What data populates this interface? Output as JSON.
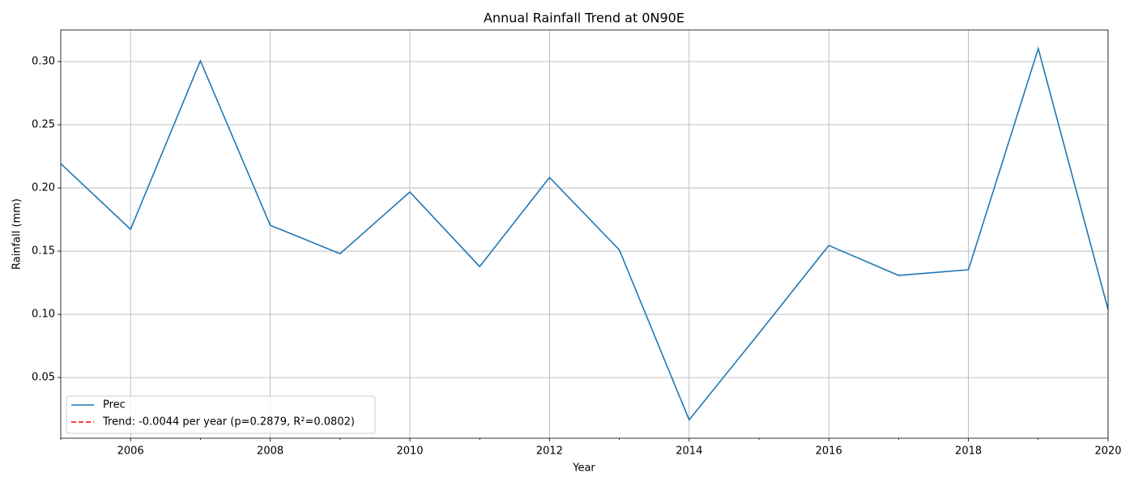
{
  "chart_data": {
    "type": "line",
    "title": "Annual Rainfall Trend at 0N90E",
    "xlabel": "Year",
    "ylabel": "Rainfall (mm)",
    "x": [
      2005,
      2006,
      2007,
      2008,
      2009,
      2010,
      2011,
      2012,
      2013,
      2014,
      2015,
      2016,
      2017,
      2018,
      2019,
      2020
    ],
    "series": [
      {
        "name": "Prec",
        "color": "#1f77b4",
        "values": [
          0.2192,
          0.1673,
          0.3006,
          0.1705,
          0.148,
          0.1968,
          0.1378,
          0.2083,
          0.151,
          0.0165,
          0.085,
          0.1545,
          0.1308,
          0.1353,
          0.3103,
          0.1038
        ]
      }
    ],
    "trend": {
      "name": "Trend: -0.0044 per year (p=0.2879, R²=0.0802)",
      "color": "#ff0000",
      "style": "dashed"
    },
    "xlim": [
      2005,
      2020
    ],
    "xticks": [
      2006,
      2008,
      2010,
      2012,
      2014,
      2016,
      2018,
      2020
    ],
    "xminorticks": [
      2005,
      2007,
      2009,
      2011,
      2013,
      2015,
      2017,
      2019
    ],
    "ylim": [
      0.002,
      0.325
    ],
    "yticks": [
      0.05,
      {
        "value": 0.1,
        "label": "0.10"
      },
      0.15,
      {
        "value": 0.2,
        "label": "0.20"
      },
      0.25,
      {
        "value": 0.3,
        "label": "0.30"
      }
    ],
    "grid": true,
    "legend": "lower left"
  }
}
